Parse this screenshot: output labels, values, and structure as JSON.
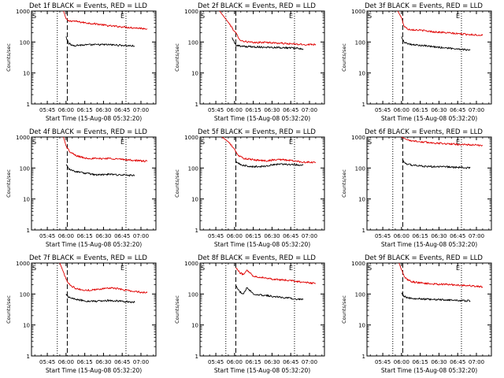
{
  "chart_data": [
    {
      "type": "line",
      "title": "Det 1f BLACK = Events, RED = LLD",
      "xlabel": "Start Time (15-Aug-08 05:32:20)",
      "ylabel": "Counts/sec",
      "y_scale": "log",
      "ylim": [
        1,
        1000
      ],
      "xlim": [
        "05:32:20",
        "07:12:00"
      ],
      "x_ticks": [
        "05:45",
        "06:00",
        "06:15",
        "06:30",
        "06:45",
        "07:00"
      ],
      "y_ticks": [
        "1",
        "10",
        "100",
        "1000"
      ],
      "vlines": [
        {
          "x": "05:53",
          "style": "dotted"
        },
        {
          "x": "06:01",
          "style": "dashed"
        },
        {
          "x": "06:48",
          "style": "dotted"
        }
      ],
      "corner_labels": [
        "S",
        "E"
      ],
      "series": [
        {
          "name": "LLD",
          "color": "#e00000",
          "x": [
            "05:58",
            "06:00",
            "06:02",
            "06:05",
            "06:15",
            "06:25",
            "06:35",
            "06:45",
            "06:55",
            "07:05"
          ],
          "values": [
            1000,
            560,
            470,
            480,
            420,
            380,
            330,
            310,
            285,
            270
          ]
        },
        {
          "name": "Events",
          "color": "#000000",
          "x": [
            "06:00",
            "06:02",
            "06:05",
            "06:15",
            "06:25",
            "06:35",
            "06:45",
            "06:55"
          ],
          "values": [
            150,
            90,
            78,
            80,
            82,
            82,
            78,
            74
          ]
        }
      ]
    },
    {
      "type": "line",
      "title": "Det 2f BLACK = Events, RED = LLD",
      "xlabel": "Start Time (15-Aug-08 05:32:20)",
      "ylabel": "Counts/sec",
      "y_scale": "log",
      "ylim": [
        1,
        1000
      ],
      "xlim": [
        "05:32:20",
        "07:12:00"
      ],
      "x_ticks": [
        "05:45",
        "06:00",
        "06:15",
        "06:30",
        "06:45",
        "07:00"
      ],
      "y_ticks": [
        "1",
        "10",
        "100",
        "1000"
      ],
      "vlines": [
        {
          "x": "05:53",
          "style": "dotted"
        },
        {
          "x": "06:01",
          "style": "dashed"
        },
        {
          "x": "06:48",
          "style": "dotted"
        }
      ],
      "corner_labels": [
        "S",
        "E"
      ],
      "series": [
        {
          "name": "LLD",
          "color": "#e00000",
          "x": [
            "05:48",
            "05:55",
            "06:00",
            "06:05",
            "06:15",
            "06:25",
            "06:35",
            "06:45",
            "06:55",
            "07:05"
          ],
          "values": [
            1000,
            430,
            220,
            110,
            95,
            98,
            92,
            87,
            82,
            85
          ]
        },
        {
          "name": "Events",
          "color": "#000000",
          "x": [
            "05:58",
            "06:01",
            "06:05",
            "06:15",
            "06:25",
            "06:35",
            "06:45",
            "06:55"
          ],
          "values": [
            140,
            80,
            72,
            70,
            68,
            67,
            64,
            60
          ]
        }
      ]
    },
    {
      "type": "line",
      "title": "Det 3f BLACK = Events, RED = LLD",
      "xlabel": "Start Time (15-Aug-08 05:32:20)",
      "ylabel": "Counts/sec",
      "y_scale": "log",
      "ylim": [
        1,
        1000
      ],
      "xlim": [
        "05:32:20",
        "07:12:00"
      ],
      "x_ticks": [
        "05:45",
        "06:00",
        "06:15",
        "06:30",
        "06:45",
        "07:00"
      ],
      "y_ticks": [
        "1",
        "10",
        "100",
        "1000"
      ],
      "vlines": [
        {
          "x": "05:53",
          "style": "dotted"
        },
        {
          "x": "06:01",
          "style": "dashed"
        },
        {
          "x": "06:48",
          "style": "dotted"
        }
      ],
      "corner_labels": [
        "S",
        "E"
      ],
      "series": [
        {
          "name": "LLD",
          "color": "#e00000",
          "x": [
            "05:57",
            "06:00",
            "06:02",
            "06:05",
            "06:15",
            "06:25",
            "06:35",
            "06:45",
            "06:55",
            "07:05"
          ],
          "values": [
            1000,
            600,
            330,
            260,
            240,
            215,
            200,
            185,
            175,
            165
          ]
        },
        {
          "name": "Events",
          "color": "#000000",
          "x": [
            "06:00",
            "06:02",
            "06:05",
            "06:15",
            "06:25",
            "06:35",
            "06:45",
            "06:55"
          ],
          "values": [
            150,
            100,
            85,
            78,
            70,
            65,
            60,
            55
          ]
        }
      ]
    },
    {
      "type": "line",
      "title": "Det 4f BLACK = Events, RED = LLD",
      "xlabel": "Start Time (15-Aug-08 05:32:20)",
      "ylabel": "Counts/sec",
      "y_scale": "log",
      "ylim": [
        1,
        1000
      ],
      "xlim": [
        "05:32:20",
        "07:12:00"
      ],
      "x_ticks": [
        "05:45",
        "06:00",
        "06:15",
        "06:30",
        "06:45",
        "07:00"
      ],
      "y_ticks": [
        "1",
        "10",
        "100",
        "1000"
      ],
      "vlines": [
        {
          "x": "05:53",
          "style": "dotted"
        },
        {
          "x": "06:01",
          "style": "dashed"
        },
        {
          "x": "06:48",
          "style": "dotted"
        }
      ],
      "corner_labels": [
        "S",
        "E"
      ],
      "series": [
        {
          "name": "LLD",
          "color": "#e00000",
          "x": [
            "05:58",
            "06:00",
            "06:03",
            "06:08",
            "06:15",
            "06:25",
            "06:35",
            "06:45",
            "06:55",
            "07:05"
          ],
          "values": [
            1000,
            520,
            330,
            250,
            210,
            200,
            205,
            190,
            175,
            165
          ]
        },
        {
          "name": "Events",
          "color": "#000000",
          "x": [
            "06:00",
            "06:02",
            "06:05",
            "06:15",
            "06:25",
            "06:35",
            "06:45",
            "06:55"
          ],
          "values": [
            130,
            95,
            82,
            68,
            60,
            62,
            60,
            57
          ]
        }
      ]
    },
    {
      "type": "line",
      "title": "Det 5f BLACK = Events, RED = LLD",
      "xlabel": "Start Time (15-Aug-08 05:32:20)",
      "ylabel": "Counts/sec",
      "y_scale": "log",
      "ylim": [
        1,
        1000
      ],
      "xlim": [
        "05:32:20",
        "07:12:00"
      ],
      "x_ticks": [
        "05:45",
        "06:00",
        "06:15",
        "06:30",
        "06:45",
        "07:00"
      ],
      "y_ticks": [
        "1",
        "10",
        "100",
        "1000"
      ],
      "vlines": [
        {
          "x": "05:53",
          "style": "dotted"
        },
        {
          "x": "06:01",
          "style": "dashed"
        },
        {
          "x": "06:48",
          "style": "dotted"
        }
      ],
      "corner_labels": [
        "S",
        "E"
      ],
      "series": [
        {
          "name": "LLD",
          "color": "#e00000",
          "x": [
            "05:50",
            "05:55",
            "06:00",
            "06:03",
            "06:08",
            "06:15",
            "06:25",
            "06:35",
            "06:45",
            "06:55",
            "07:05"
          ],
          "values": [
            1000,
            700,
            400,
            250,
            200,
            185,
            170,
            190,
            175,
            155,
            150
          ]
        },
        {
          "name": "Events",
          "color": "#000000",
          "x": [
            "06:01",
            "06:03",
            "06:08",
            "06:15",
            "06:25",
            "06:35",
            "06:45",
            "06:55"
          ],
          "values": [
            160,
            140,
            118,
            110,
            115,
            135,
            130,
            125
          ]
        }
      ]
    },
    {
      "type": "line",
      "title": "Det 6f BLACK = Events, RED = LLD",
      "xlabel": "Start Time (15-Aug-08 05:32:20)",
      "ylabel": "Counts/sec",
      "y_scale": "log",
      "ylim": [
        1,
        1000
      ],
      "xlim": [
        "05:32:20",
        "07:12:00"
      ],
      "x_ticks": [
        "05:45",
        "06:00",
        "06:15",
        "06:30",
        "06:45",
        "07:00"
      ],
      "y_ticks": [
        "1",
        "10",
        "100",
        "1000"
      ],
      "vlines": [
        {
          "x": "05:53",
          "style": "dotted"
        },
        {
          "x": "06:01",
          "style": "dashed"
        },
        {
          "x": "06:48",
          "style": "dotted"
        }
      ],
      "corner_labels": [
        "S",
        "E"
      ],
      "series": [
        {
          "name": "LLD",
          "color": "#e00000",
          "x": [
            "06:00",
            "06:05",
            "06:15",
            "06:25",
            "06:35",
            "06:45",
            "06:55",
            "07:05"
          ],
          "values": [
            1000,
            800,
            700,
            650,
            610,
            580,
            560,
            530
          ]
        },
        {
          "name": "Events",
          "color": "#000000",
          "x": [
            "06:01",
            "06:03",
            "06:08",
            "06:15",
            "06:25",
            "06:35",
            "06:45",
            "06:55"
          ],
          "values": [
            180,
            140,
            125,
            115,
            110,
            110,
            105,
            100
          ]
        }
      ]
    },
    {
      "type": "line",
      "title": "Det 7f BLACK = Events, RED = LLD",
      "xlabel": "Start Time (15-Aug-08 05:32:20)",
      "ylabel": "Counts/sec",
      "y_scale": "log",
      "ylim": [
        1,
        1000
      ],
      "xlim": [
        "05:32:20",
        "07:12:00"
      ],
      "x_ticks": [
        "05:45",
        "06:00",
        "06:15",
        "06:30",
        "06:45",
        "07:00"
      ],
      "y_ticks": [
        "1",
        "10",
        "100",
        "1000"
      ],
      "vlines": [
        {
          "x": "05:53",
          "style": "dotted"
        },
        {
          "x": "06:01",
          "style": "dashed"
        },
        {
          "x": "06:48",
          "style": "dotted"
        }
      ],
      "corner_labels": [
        "S",
        "E"
      ],
      "series": [
        {
          "name": "LLD",
          "color": "#e00000",
          "x": [
            "05:55",
            "05:58",
            "06:00",
            "06:03",
            "06:08",
            "06:15",
            "06:25",
            "06:35",
            "06:45",
            "06:55",
            "07:05"
          ],
          "values": [
            1000,
            500,
            300,
            200,
            150,
            130,
            140,
            160,
            140,
            120,
            110
          ]
        },
        {
          "name": "Events",
          "color": "#000000",
          "x": [
            "06:00",
            "06:02",
            "06:05",
            "06:15",
            "06:25",
            "06:35",
            "06:45",
            "06:55"
          ],
          "values": [
            100,
            80,
            70,
            60,
            58,
            62,
            58,
            54
          ]
        }
      ]
    },
    {
      "type": "line",
      "title": "Det 8f BLACK = Events, RED = LLD",
      "xlabel": "Start Time (15-Aug-08 05:32:20)",
      "ylabel": "Counts/sec",
      "y_scale": "log",
      "ylim": [
        1,
        1000
      ],
      "xlim": [
        "05:32:20",
        "07:12:00"
      ],
      "x_ticks": [
        "05:45",
        "06:00",
        "06:15",
        "06:30",
        "06:45",
        "07:00"
      ],
      "y_ticks": [
        "1",
        "10",
        "100",
        "1000"
      ],
      "vlines": [
        {
          "x": "05:53",
          "style": "dotted"
        },
        {
          "x": "06:01",
          "style": "dashed"
        },
        {
          "x": "06:48",
          "style": "dotted"
        }
      ],
      "corner_labels": [
        "S",
        "E"
      ],
      "series": [
        {
          "name": "LLD",
          "color": "#e00000",
          "x": [
            "06:01",
            "06:04",
            "06:07",
            "06:10",
            "06:15",
            "06:25",
            "06:35",
            "06:45",
            "06:55",
            "07:05"
          ],
          "values": [
            700,
            500,
            420,
            600,
            380,
            330,
            290,
            270,
            240,
            220
          ]
        },
        {
          "name": "Events",
          "color": "#000000",
          "x": [
            "06:01",
            "06:04",
            "06:07",
            "06:10",
            "06:15",
            "06:25",
            "06:35",
            "06:45",
            "06:55"
          ],
          "values": [
            180,
            120,
            100,
            160,
            100,
            90,
            80,
            72,
            66
          ]
        }
      ]
    },
    {
      "type": "line",
      "title": "Det 9f BLACK = Events, RED = LLD",
      "xlabel": "Start Time (15-Aug-08 05:32:20)",
      "ylabel": "Counts/sec",
      "y_scale": "log",
      "ylim": [
        1,
        1000
      ],
      "xlim": [
        "05:32:20",
        "07:12:00"
      ],
      "x_ticks": [
        "05:45",
        "06:00",
        "06:15",
        "06:30",
        "06:45",
        "07:00"
      ],
      "y_ticks": [
        "1",
        "10",
        "100",
        "1000"
      ],
      "vlines": [
        {
          "x": "05:53",
          "style": "dotted"
        },
        {
          "x": "06:01",
          "style": "dashed"
        },
        {
          "x": "06:48",
          "style": "dotted"
        }
      ],
      "corner_labels": [
        "S",
        "E"
      ],
      "series": [
        {
          "name": "LLD",
          "color": "#e00000",
          "x": [
            "05:58",
            "06:00",
            "06:03",
            "06:08",
            "06:15",
            "06:25",
            "06:35",
            "06:45",
            "06:55",
            "07:05"
          ],
          "values": [
            1000,
            600,
            320,
            250,
            230,
            210,
            205,
            195,
            185,
            170
          ]
        },
        {
          "name": "Events",
          "color": "#000000",
          "x": [
            "06:00",
            "06:02",
            "06:05",
            "06:15",
            "06:25",
            "06:35",
            "06:45",
            "06:55"
          ],
          "values": [
            110,
            85,
            75,
            70,
            66,
            65,
            62,
            60
          ]
        }
      ]
    }
  ]
}
